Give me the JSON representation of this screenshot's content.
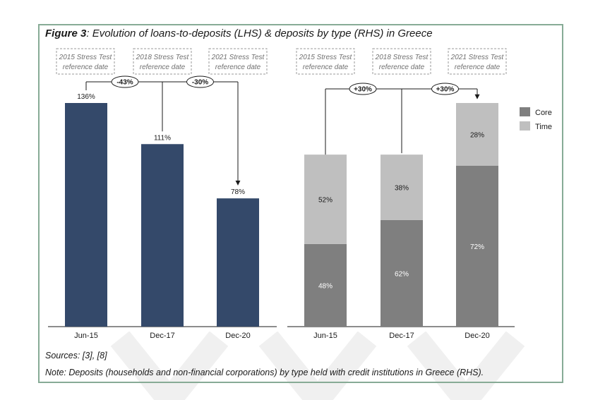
{
  "figure": {
    "label": "Figure 3",
    "title": ": Evolution of loans-to-deposits (LHS) & deposits by type (RHS) in Greece",
    "sources": "Sources: [3], [8]",
    "note": "Note: Deposits (households and non-financial corporations) by type held with credit institutions in Greece (RHS)."
  },
  "colors": {
    "loans_bar": "#34496a",
    "core": "#7f7f7f",
    "time": "#bfbfbf",
    "frame": "#87ab96"
  },
  "chart_data": [
    {
      "type": "bar",
      "title": "Loans-to-deposits (LHS)",
      "categories": [
        "Jun-15",
        "Dec-17",
        "Dec-20"
      ],
      "values": [
        136,
        111,
        78
      ],
      "value_labels": [
        "136%",
        "111%",
        "78%"
      ],
      "ylim": [
        0,
        136
      ],
      "reference_labels": [
        [
          "2015 Stress Test",
          "reference date"
        ],
        [
          "2018 Stress Test",
          "reference date"
        ],
        [
          "2021 Stress Test",
          "reference date"
        ]
      ],
      "changes": [
        "-43%",
        "-30%"
      ]
    },
    {
      "type": "bar",
      "stacked": true,
      "title": "Deposits by type (RHS)",
      "categories": [
        "Jun-15",
        "Dec-17",
        "Dec-20"
      ],
      "series": [
        {
          "name": "Core",
          "values": [
            48,
            62,
            72
          ],
          "labels": [
            "48%",
            "62%",
            "72%"
          ]
        },
        {
          "name": "Time",
          "values": [
            52,
            38,
            28
          ],
          "labels": [
            "52%",
            "38%",
            "28%"
          ]
        }
      ],
      "totals_relative": [
        100,
        100,
        130
      ],
      "reference_labels": [
        [
          "2015 Stress Test",
          "reference date"
        ],
        [
          "2018 Stress Test",
          "reference date"
        ],
        [
          "2021 Stress Test",
          "reference date"
        ]
      ],
      "changes": [
        "+30%",
        "+30%"
      ],
      "legend": [
        "Core",
        "Time"
      ],
      "legend_position": "top-right"
    }
  ]
}
